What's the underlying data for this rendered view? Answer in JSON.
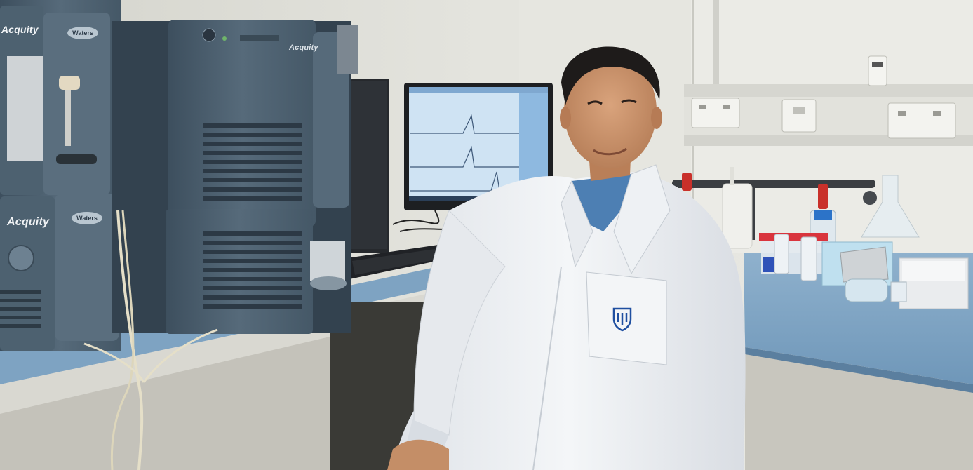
{
  "scene": {
    "description_free": true
  },
  "instruments": {
    "left_unit_top_brand": "Acquity",
    "left_unit_top_badge": "Waters",
    "left_unit_bottom_brand": "Acquity",
    "left_unit_bottom_badge": "Waters",
    "center_unit_brand": "Acquity"
  },
  "colors": {
    "wall": "#e2e2dc",
    "bench_top": "#7ea3c2",
    "instrument_body": "#4f6272",
    "lab_coat": "#eef0f2",
    "shirt": "#4d7fb3",
    "monitor_screen": "#cfe3f3"
  },
  "icons": {
    "coat_logo": "university-crest-icon"
  }
}
